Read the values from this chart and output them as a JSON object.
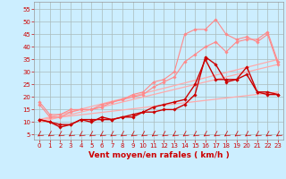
{
  "background_color": "#cceeff",
  "grid_color": "#aabbbb",
  "xlabel": "Vent moyen/en rafales ( km/h )",
  "ylabel_ticks": [
    5,
    10,
    15,
    20,
    25,
    30,
    35,
    40,
    45,
    50,
    55
  ],
  "xlim": [
    -0.5,
    23.5
  ],
  "ylim": [
    3,
    58
  ],
  "x_ticks": [
    0,
    1,
    2,
    3,
    4,
    5,
    6,
    7,
    8,
    9,
    10,
    11,
    12,
    13,
    14,
    15,
    16,
    17,
    18,
    19,
    20,
    21,
    22,
    23
  ],
  "series": [
    {
      "color": "#ff8888",
      "linewidth": 0.8,
      "marker": "D",
      "markersize": 1.8,
      "x": [
        0,
        1,
        2,
        3,
        4,
        5,
        6,
        7,
        8,
        9,
        10,
        11,
        12,
        13,
        14,
        15,
        16,
        17,
        18,
        19,
        20,
        21,
        22,
        23
      ],
      "y": [
        18,
        13,
        13,
        15,
        15,
        15,
        16,
        18,
        19,
        20,
        21,
        24,
        26,
        28,
        34,
        37,
        40,
        42,
        38,
        42,
        43,
        43,
        46,
        34
      ]
    },
    {
      "color": "#ff8888",
      "linewidth": 0.8,
      "marker": "D",
      "markersize": 1.8,
      "x": [
        0,
        1,
        2,
        3,
        4,
        5,
        6,
        7,
        8,
        9,
        10,
        11,
        12,
        13,
        14,
        15,
        16,
        17,
        18,
        19,
        20,
        21,
        22,
        23
      ],
      "y": [
        17,
        12,
        12,
        14,
        15,
        15,
        17,
        18,
        19,
        21,
        22,
        26,
        27,
        30,
        45,
        47,
        47,
        51,
        45,
        43,
        44,
        42,
        45,
        33
      ]
    },
    {
      "color": "#ffaaaa",
      "linewidth": 0.9,
      "marker": null,
      "x": [
        0,
        23
      ],
      "y": [
        10,
        33
      ]
    },
    {
      "color": "#ffaaaa",
      "linewidth": 0.9,
      "marker": null,
      "x": [
        0,
        23
      ],
      "y": [
        11,
        35
      ]
    },
    {
      "color": "#ffaaaa",
      "linewidth": 0.9,
      "marker": null,
      "x": [
        0,
        23
      ],
      "y": [
        11,
        22
      ]
    },
    {
      "color": "#cc0000",
      "linewidth": 1.0,
      "marker": "D",
      "markersize": 1.8,
      "x": [
        0,
        1,
        2,
        3,
        4,
        5,
        6,
        7,
        8,
        9,
        10,
        11,
        12,
        13,
        14,
        15,
        16,
        17,
        18,
        19,
        20,
        21,
        22,
        23
      ],
      "y": [
        11,
        10,
        8,
        9,
        11,
        11,
        11,
        11,
        12,
        12,
        14,
        14,
        15,
        15,
        17,
        21,
        36,
        33,
        26,
        27,
        29,
        22,
        22,
        21
      ]
    },
    {
      "color": "#cc0000",
      "linewidth": 1.0,
      "marker": "D",
      "markersize": 1.8,
      "x": [
        0,
        1,
        2,
        3,
        4,
        5,
        6,
        7,
        8,
        9,
        10,
        11,
        12,
        13,
        14,
        15,
        16,
        17,
        18,
        19,
        20,
        21,
        22,
        23
      ],
      "y": [
        11,
        10,
        9,
        9,
        11,
        10,
        12,
        11,
        12,
        13,
        14,
        16,
        17,
        18,
        19,
        25,
        35,
        27,
        27,
        27,
        32,
        22,
        21,
        21
      ]
    }
  ],
  "axis_label_fontsize": 6.5,
  "tick_fontsize": 5.0,
  "label_color": "#cc0000"
}
